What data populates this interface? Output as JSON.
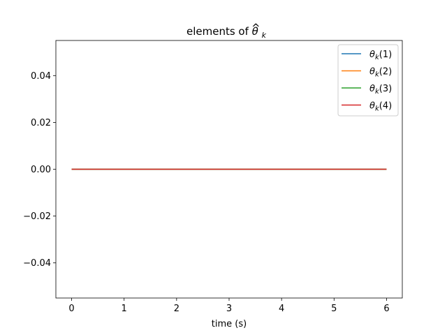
{
  "chart_data": {
    "type": "line",
    "title": "elements of θ̂ₖ",
    "title_parts": {
      "prefix": "elements of ",
      "symbol": "θ",
      "hat": "^",
      "subscript": "k"
    },
    "xlabel": "time (s)",
    "ylabel": "",
    "xlim": [
      -0.3,
      6.3
    ],
    "ylim": [
      -0.055,
      0.055
    ],
    "xticks": [
      0,
      1,
      2,
      3,
      4,
      5,
      6
    ],
    "xtick_labels": [
      "0",
      "1",
      "2",
      "3",
      "4",
      "5",
      "6"
    ],
    "yticks": [
      -0.04,
      -0.02,
      0.0,
      0.02,
      0.04
    ],
    "ytick_labels": [
      "−0.04",
      "−0.02",
      "0.00",
      "0.02",
      "0.04"
    ],
    "grid": false,
    "legend_position": "top-right",
    "x": [
      0,
      6
    ],
    "series": [
      {
        "name": "θk(1)",
        "name_parts": {
          "symbol": "θ",
          "subscript": "k",
          "index": "(1)"
        },
        "color": "#1f77b4",
        "values": [
          0,
          0
        ]
      },
      {
        "name": "θk(2)",
        "name_parts": {
          "symbol": "θ",
          "subscript": "k",
          "index": "(2)"
        },
        "color": "#ff7f0e",
        "values": [
          0,
          0
        ]
      },
      {
        "name": "θk(3)",
        "name_parts": {
          "symbol": "θ",
          "subscript": "k",
          "index": "(3)"
        },
        "color": "#2ca02c",
        "values": [
          0,
          0
        ]
      },
      {
        "name": "θk(4)",
        "name_parts": {
          "symbol": "θ",
          "subscript": "k",
          "index": "(4)"
        },
        "color": "#d62728",
        "values": [
          0,
          0
        ]
      }
    ]
  }
}
